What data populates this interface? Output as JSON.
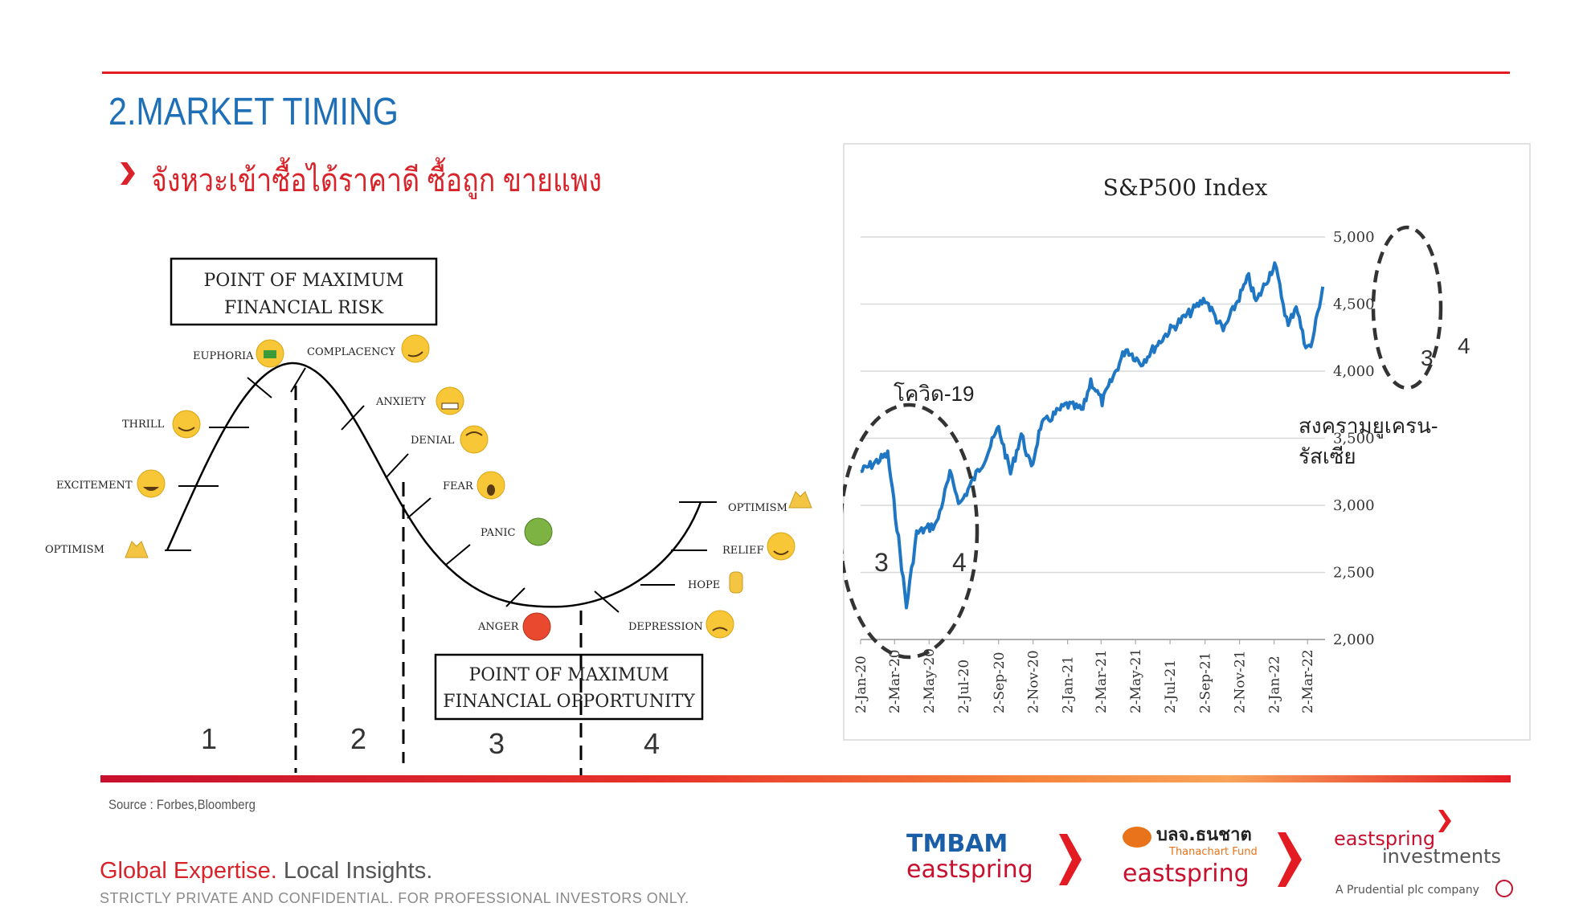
{
  "header": {
    "title": "2.MARKET TIMING",
    "subtitle": "จังหวะเข้าซื้อได้ราคาดี ซื้อถูก ขายแพง"
  },
  "cycle": {
    "box_top": [
      "POINT OF MAXIMUM",
      "FINANCIAL RISK"
    ],
    "box_bottom": [
      "POINT OF MAXIMUM",
      "FINANCIAL OPPORTUNITY"
    ],
    "stages": [
      "OPTIMISM",
      "EXCITEMENT",
      "THRILL",
      "EUPHORIA",
      "COMPLACENCY",
      "ANXIETY",
      "DENIAL",
      "FEAR",
      "PANIC",
      "ANGER",
      "DEPRESSION",
      "HOPE",
      "RELIEF",
      "OPTIMISM"
    ],
    "phases": [
      "1",
      "2",
      "3",
      "4"
    ]
  },
  "chart_data": {
    "type": "line",
    "title": "S&P500 Index",
    "x_tick_labels": [
      "2-Jan-20",
      "2-Mar-20",
      "2-May-20",
      "2-Jul-20",
      "2-Sep-20",
      "2-Nov-20",
      "2-Jan-21",
      "2-Mar-21",
      "2-May-21",
      "2-Jul-21",
      "2-Sep-21",
      "2-Nov-21",
      "2-Jan-22",
      "2-Mar-22"
    ],
    "y_tick_labels": [
      "5,000",
      "4,500",
      "4,000",
      "3,500",
      "3,000",
      "2,500",
      "2,000"
    ],
    "ylim": [
      2000,
      5000
    ],
    "grid": true,
    "series_color": "#1f77c4",
    "x": [
      "2020-01-02",
      "2020-02-19",
      "2020-03-09",
      "2020-03-23",
      "2020-04-10",
      "2020-05-15",
      "2020-06-08",
      "2020-06-26",
      "2020-08-10",
      "2020-09-02",
      "2020-09-23",
      "2020-10-12",
      "2020-10-30",
      "2020-11-15",
      "2020-12-31",
      "2021-01-29",
      "2021-02-12",
      "2021-03-04",
      "2021-04-15",
      "2021-05-12",
      "2021-06-30",
      "2021-08-13",
      "2021-09-02",
      "2021-10-04",
      "2021-11-18",
      "2021-12-01",
      "2022-01-03",
      "2022-01-27",
      "2022-02-10",
      "2022-02-24",
      "2022-03-08",
      "2022-03-29"
    ],
    "values": [
      3250,
      3380,
      2750,
      2240,
      2790,
      2860,
      3230,
      3010,
      3360,
      3580,
      3240,
      3530,
      3270,
      3590,
      3750,
      3710,
      3930,
      3770,
      4170,
      4060,
      4300,
      4460,
      4540,
      4300,
      4700,
      4510,
      4800,
      4330,
      4500,
      4220,
      4170,
      4630
    ],
    "annotations": [
      {
        "text": "โควิด-19"
      },
      {
        "text": "สงครามยูเครน-"
      },
      {
        "text": "รัสเซีย"
      },
      {
        "text": "3"
      },
      {
        "text": "4"
      }
    ]
  },
  "footer": {
    "source": "Source : Forbes,Bloomberg",
    "tagline_red": "Global Expertise.",
    "tagline_grey": "Local Insights.",
    "confidential": "STRICTLY PRIVATE AND CONFIDENTIAL. FOR PROFESSIONAL INVESTORS ONLY."
  },
  "logos": {
    "tmbam_top": "TMBAM",
    "tmbam_bottom": "eastspring",
    "thanachart_thai": "บลจ.ธนชาต",
    "thanachart_en": "Thanachart Fund",
    "thanachart_bottom": "eastspring",
    "es_line1": "eastspring",
    "es_line2": "investments",
    "es_tag": "A Prudential plc company"
  },
  "colors": {
    "accent_red": "#e31b23",
    "title_blue": "#1f6fb7"
  }
}
